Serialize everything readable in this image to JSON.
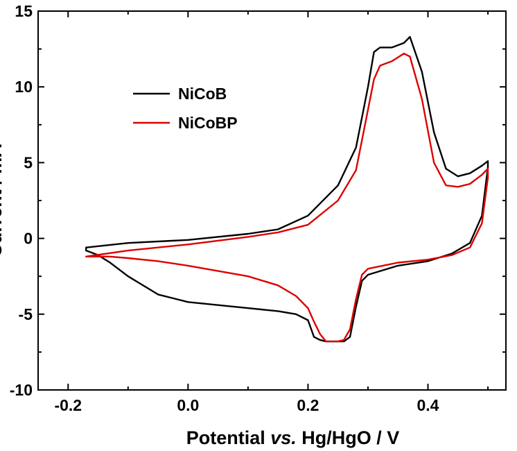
{
  "chart_data": {
    "type": "line",
    "title": "",
    "xlabel_parts": [
      "Potential ",
      "vs.",
      " Hg/HgO / V"
    ],
    "ylabel": "Current / mA",
    "xlim": [
      -0.25,
      0.53
    ],
    "ylim": [
      -10,
      15
    ],
    "xticks": [
      -0.2,
      0.0,
      0.2,
      0.4
    ],
    "xtick_labels": [
      "-0.2",
      "0.0",
      "0.2",
      "0.4"
    ],
    "yticks": [
      -10,
      -5,
      0,
      5,
      10,
      15
    ],
    "ytick_labels": [
      "-10",
      "-5",
      "0",
      "5",
      "10",
      "15"
    ],
    "grid": false,
    "legend_position": "top-left",
    "series": [
      {
        "name": "NiCoB",
        "color": "#000000",
        "x": [
          -0.17,
          -0.1,
          0.0,
          0.1,
          0.15,
          0.2,
          0.25,
          0.28,
          0.3,
          0.31,
          0.32,
          0.34,
          0.36,
          0.37,
          0.39,
          0.41,
          0.43,
          0.45,
          0.47,
          0.49,
          0.5,
          0.5,
          0.49,
          0.47,
          0.44,
          0.4,
          0.35,
          0.3,
          0.29,
          0.28,
          0.27,
          0.26,
          0.25,
          0.24,
          0.23,
          0.22,
          0.21,
          0.2,
          0.18,
          0.15,
          0.1,
          0.0,
          -0.05,
          -0.1,
          -0.13,
          -0.15,
          -0.17
        ],
        "y": [
          -0.6,
          -0.3,
          -0.1,
          0.3,
          0.6,
          1.5,
          3.5,
          6.0,
          10.0,
          12.3,
          12.6,
          12.6,
          12.9,
          13.3,
          11.0,
          7.0,
          4.6,
          4.1,
          4.3,
          4.8,
          5.1,
          4.7,
          1.5,
          -0.3,
          -1.0,
          -1.5,
          -1.8,
          -2.4,
          -2.8,
          -4.5,
          -6.5,
          -6.8,
          -6.8,
          -6.8,
          -6.8,
          -6.7,
          -6.5,
          -5.4,
          -5.0,
          -4.8,
          -4.6,
          -4.2,
          -3.7,
          -2.5,
          -1.6,
          -1.1,
          -0.8
        ]
      },
      {
        "name": "NiCoBP",
        "color": "#dd0000",
        "x": [
          -0.17,
          -0.1,
          0.0,
          0.1,
          0.15,
          0.2,
          0.25,
          0.28,
          0.3,
          0.31,
          0.32,
          0.34,
          0.36,
          0.37,
          0.39,
          0.41,
          0.43,
          0.45,
          0.47,
          0.49,
          0.5,
          0.5,
          0.49,
          0.47,
          0.44,
          0.4,
          0.35,
          0.3,
          0.29,
          0.28,
          0.27,
          0.26,
          0.25,
          0.24,
          0.23,
          0.22,
          0.21,
          0.2,
          0.18,
          0.15,
          0.1,
          0.0,
          -0.05,
          -0.1,
          -0.13,
          -0.15,
          -0.17
        ],
        "y": [
          -1.2,
          -0.8,
          -0.4,
          0.1,
          0.4,
          0.9,
          2.5,
          4.5,
          8.5,
          10.5,
          11.4,
          11.7,
          12.2,
          12.0,
          9.2,
          5.0,
          3.5,
          3.4,
          3.6,
          4.2,
          4.6,
          4.0,
          1.0,
          -0.6,
          -1.1,
          -1.4,
          -1.6,
          -2.0,
          -2.4,
          -4.0,
          -6.0,
          -6.7,
          -6.8,
          -6.8,
          -6.8,
          -6.3,
          -5.5,
          -4.6,
          -3.8,
          -3.1,
          -2.5,
          -1.8,
          -1.5,
          -1.3,
          -1.2,
          -1.2,
          -1.2
        ]
      }
    ]
  }
}
